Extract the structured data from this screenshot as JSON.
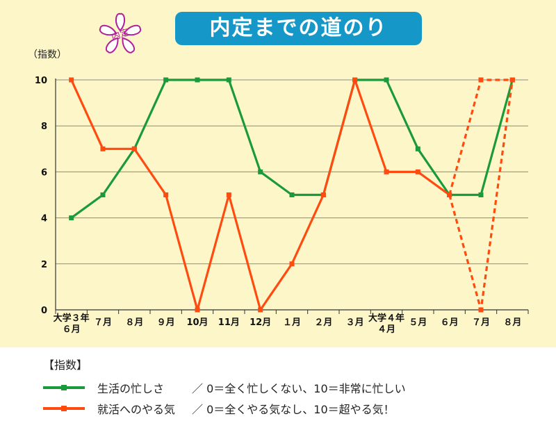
{
  "title": "内定までの道のり",
  "stamp": "内定",
  "y_unit": "（指数）",
  "legend": {
    "heading": "【指数】",
    "items": [
      {
        "name": "生活の忙しさ",
        "description": "／ 0＝全く忙しくない、10＝非常に忙しい",
        "color": "#1a9a3a"
      },
      {
        "name": "就活へのやる気",
        "description": "／ 0＝全くやる気なし、10＝超やる気！",
        "color": "#ff4a10"
      }
    ]
  },
  "colors": {
    "panel": "#fdf6c8",
    "title_bg": "#1598c8",
    "grid": "#8a8a8a",
    "stamp": "#b0209a"
  },
  "chart_data": {
    "type": "line",
    "categories": [
      "大学３年\n６月",
      "７月",
      "８月",
      "９月",
      "10月",
      "11月",
      "12月",
      "１月",
      "２月",
      "３月",
      "大学４年\n４月",
      "５月",
      "６月",
      "７月",
      "８月"
    ],
    "ylim": [
      0,
      10
    ],
    "yticks": [
      0,
      2,
      4,
      6,
      8,
      10
    ],
    "grid": true,
    "series": [
      {
        "name": "生活の忙しさ",
        "color": "#1a9a3a",
        "values": [
          4,
          5,
          7,
          10,
          10,
          10,
          6,
          5,
          5,
          10,
          10,
          7,
          5,
          5,
          10
        ],
        "dashed_from": null,
        "branches": []
      },
      {
        "name": "就活へのやる気",
        "color": "#ff4a10",
        "values": [
          10,
          7,
          7,
          5,
          0,
          5,
          0,
          2,
          5,
          10,
          6,
          6,
          5,
          0,
          10
        ],
        "dashed_from": 12,
        "branches": [
          [
            5,
            10,
            10
          ]
        ],
        "branch_start": 12
      }
    ]
  }
}
